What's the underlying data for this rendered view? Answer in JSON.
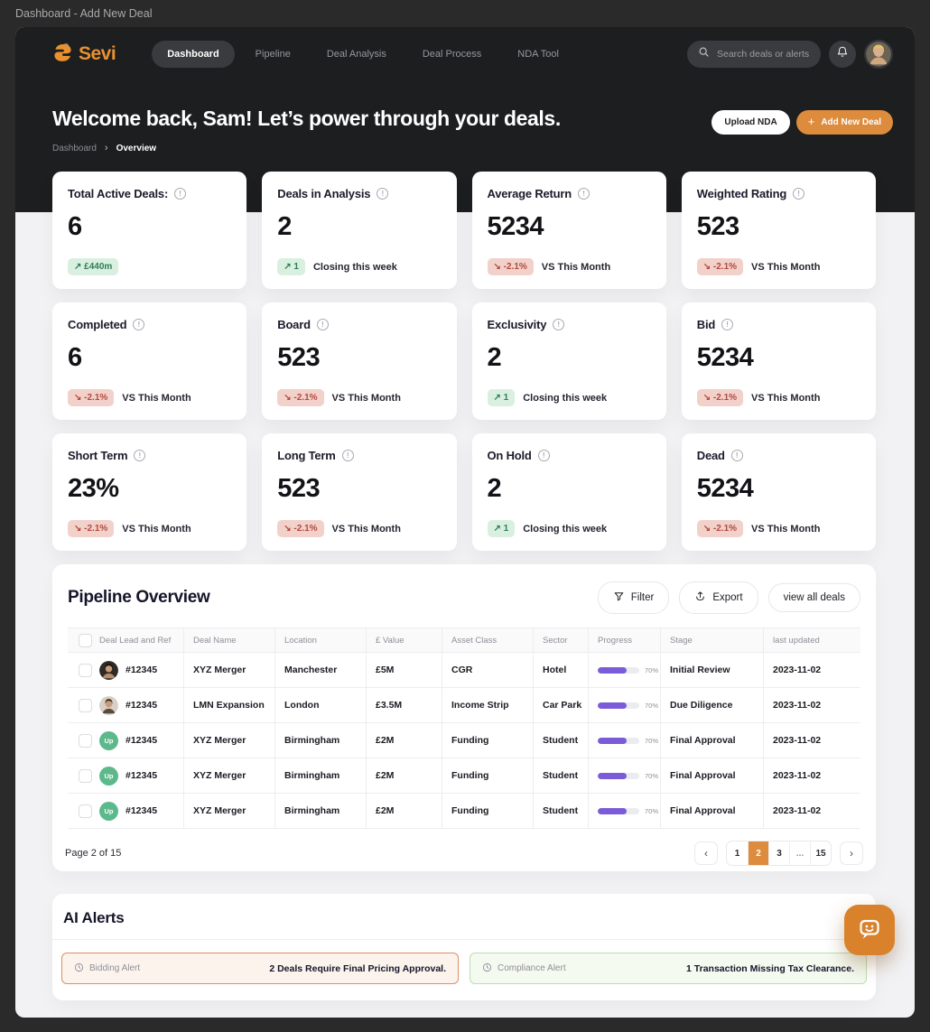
{
  "window": {
    "title": "Dashboard - Add New Deal"
  },
  "navbar": {
    "brand": "Sevi",
    "items": [
      {
        "label": "Dashboard",
        "active": true
      },
      {
        "label": "Pipeline",
        "active": false
      },
      {
        "label": "Deal Analysis",
        "active": false
      },
      {
        "label": "Deal Process",
        "active": false
      },
      {
        "label": "NDA Tool",
        "active": false
      }
    ],
    "search_placeholder": "Search deals or alerts"
  },
  "hero": {
    "heading": "Welcome back, Sam! Let’s power through your deals.",
    "breadcrumb": [
      "Dashboard",
      "Overview"
    ],
    "upload_label": "Upload NDA",
    "add_label": "Add New Deal"
  },
  "stats": [
    {
      "title": "Total Active Deals:",
      "value": "6",
      "badge": "↗ £440m",
      "badge_type": "green",
      "note": ""
    },
    {
      "title": "Deals in Analysis",
      "value": "2",
      "badge": "↗ 1",
      "badge_type": "green",
      "note": "Closing this week"
    },
    {
      "title": "Average Return",
      "value": "5234",
      "badge": "↘ -2.1%",
      "badge_type": "red",
      "note": "VS This Month"
    },
    {
      "title": "Weighted Rating",
      "value": "523",
      "badge": "↘ -2.1%",
      "badge_type": "red",
      "note": "VS This Month"
    },
    {
      "title": "Completed",
      "value": "6",
      "badge": "↘ -2.1%",
      "badge_type": "red",
      "note": "VS This Month"
    },
    {
      "title": "Board",
      "value": "523",
      "badge": "↘ -2.1%",
      "badge_type": "red",
      "note": "VS This Month"
    },
    {
      "title": "Exclusivity",
      "value": "2",
      "badge": "↗ 1",
      "badge_type": "green",
      "note": "Closing this week"
    },
    {
      "title": "Bid",
      "value": "5234",
      "badge": "↘ -2.1%",
      "badge_type": "red",
      "note": "VS This Month"
    },
    {
      "title": "Short Term",
      "value": "23%",
      "badge": "↘ -2.1%",
      "badge_type": "red",
      "note": "VS This Month"
    },
    {
      "title": "Long Term",
      "value": "523",
      "badge": "↘ -2.1%",
      "badge_type": "red",
      "note": "VS This Month"
    },
    {
      "title": "On Hold",
      "value": "2",
      "badge": "↗ 1",
      "badge_type": "green",
      "note": "Closing this week"
    },
    {
      "title": "Dead",
      "value": "5234",
      "badge": "↘ -2.1%",
      "badge_type": "red",
      "note": "VS This Month"
    }
  ],
  "pipeline": {
    "title": "Pipeline Overview",
    "filter_label": "Filter",
    "export_label": "Export",
    "view_all_label": "view all  deals",
    "table": {
      "columns": [
        "Deal Lead and Ref",
        "Deal Name",
        "Location",
        "£ Value",
        "Asset Class",
        "Sector",
        "Progress",
        "Stage",
        "last updated"
      ],
      "rows": [
        {
          "ref": "#12345",
          "name": "XYZ Merger",
          "location": "Manchester",
          "value": "£5M",
          "asset": "CGR",
          "sector": "Hotel",
          "progress": 70,
          "progress_label": "70%",
          "stage": "Initial Review",
          "updated": "2023-11-02",
          "avatar": "photo-dark"
        },
        {
          "ref": "#12345",
          "name": "LMN Expansion",
          "location": "London",
          "value": "£3.5M",
          "asset": "Income Strip",
          "sector": "Car Park",
          "progress": 70,
          "progress_label": "70%",
          "stage": "Due Diligence",
          "updated": "2023-11-02",
          "avatar": "photo-light"
        },
        {
          "ref": "#12345",
          "name": "XYZ Merger",
          "location": "Birmingham",
          "value": "£2M",
          "asset": "Funding",
          "sector": "Student",
          "progress": 70,
          "progress_label": "70%",
          "stage": "Final Approval",
          "updated": "2023-11-02",
          "avatar": "up",
          "avatar_label": "Up"
        },
        {
          "ref": "#12345",
          "name": "XYZ Merger",
          "location": "Birmingham",
          "value": "£2M",
          "asset": "Funding",
          "sector": "Student",
          "progress": 70,
          "progress_label": "70%",
          "stage": "Final Approval",
          "updated": "2023-11-02",
          "avatar": "up",
          "avatar_label": "Up"
        },
        {
          "ref": "#12345",
          "name": "XYZ Merger",
          "location": "Birmingham",
          "value": "£2M",
          "asset": "Funding",
          "sector": "Student",
          "progress": 70,
          "progress_label": "70%",
          "stage": "Final Approval",
          "updated": "2023-11-02",
          "avatar": "up",
          "avatar_label": "Up"
        }
      ]
    },
    "pagination": {
      "label": "Page 2 of 15",
      "pages": [
        "1",
        "2",
        "3",
        "...",
        "15"
      ],
      "active": "2"
    }
  },
  "alerts": {
    "title": "AI Alerts",
    "items": [
      {
        "label": "Bidding Alert",
        "message": "2 Deals Require Final Pricing Approval.",
        "type": "orange"
      },
      {
        "label": "Compliance Alert",
        "message": "1 Transaction Missing Tax Clearance.",
        "type": "green"
      }
    ]
  },
  "colors": {
    "accent_orange": "#DD8B3D",
    "brand_orange": "#E8912F",
    "progress_purple": "#7B5BD8",
    "badge_green_bg": "#D9F0E1",
    "badge_green_text": "#2F7D57",
    "badge_red_bg": "#F2D1CA",
    "badge_red_text": "#B04A40",
    "alert_orange_border": "#DB8F63",
    "alert_green_border": "#BCDFAE",
    "dark_hero": "#1D1E20",
    "page_bg": "#F2F2F4",
    "avatar_up_green": "#5CB98C"
  }
}
